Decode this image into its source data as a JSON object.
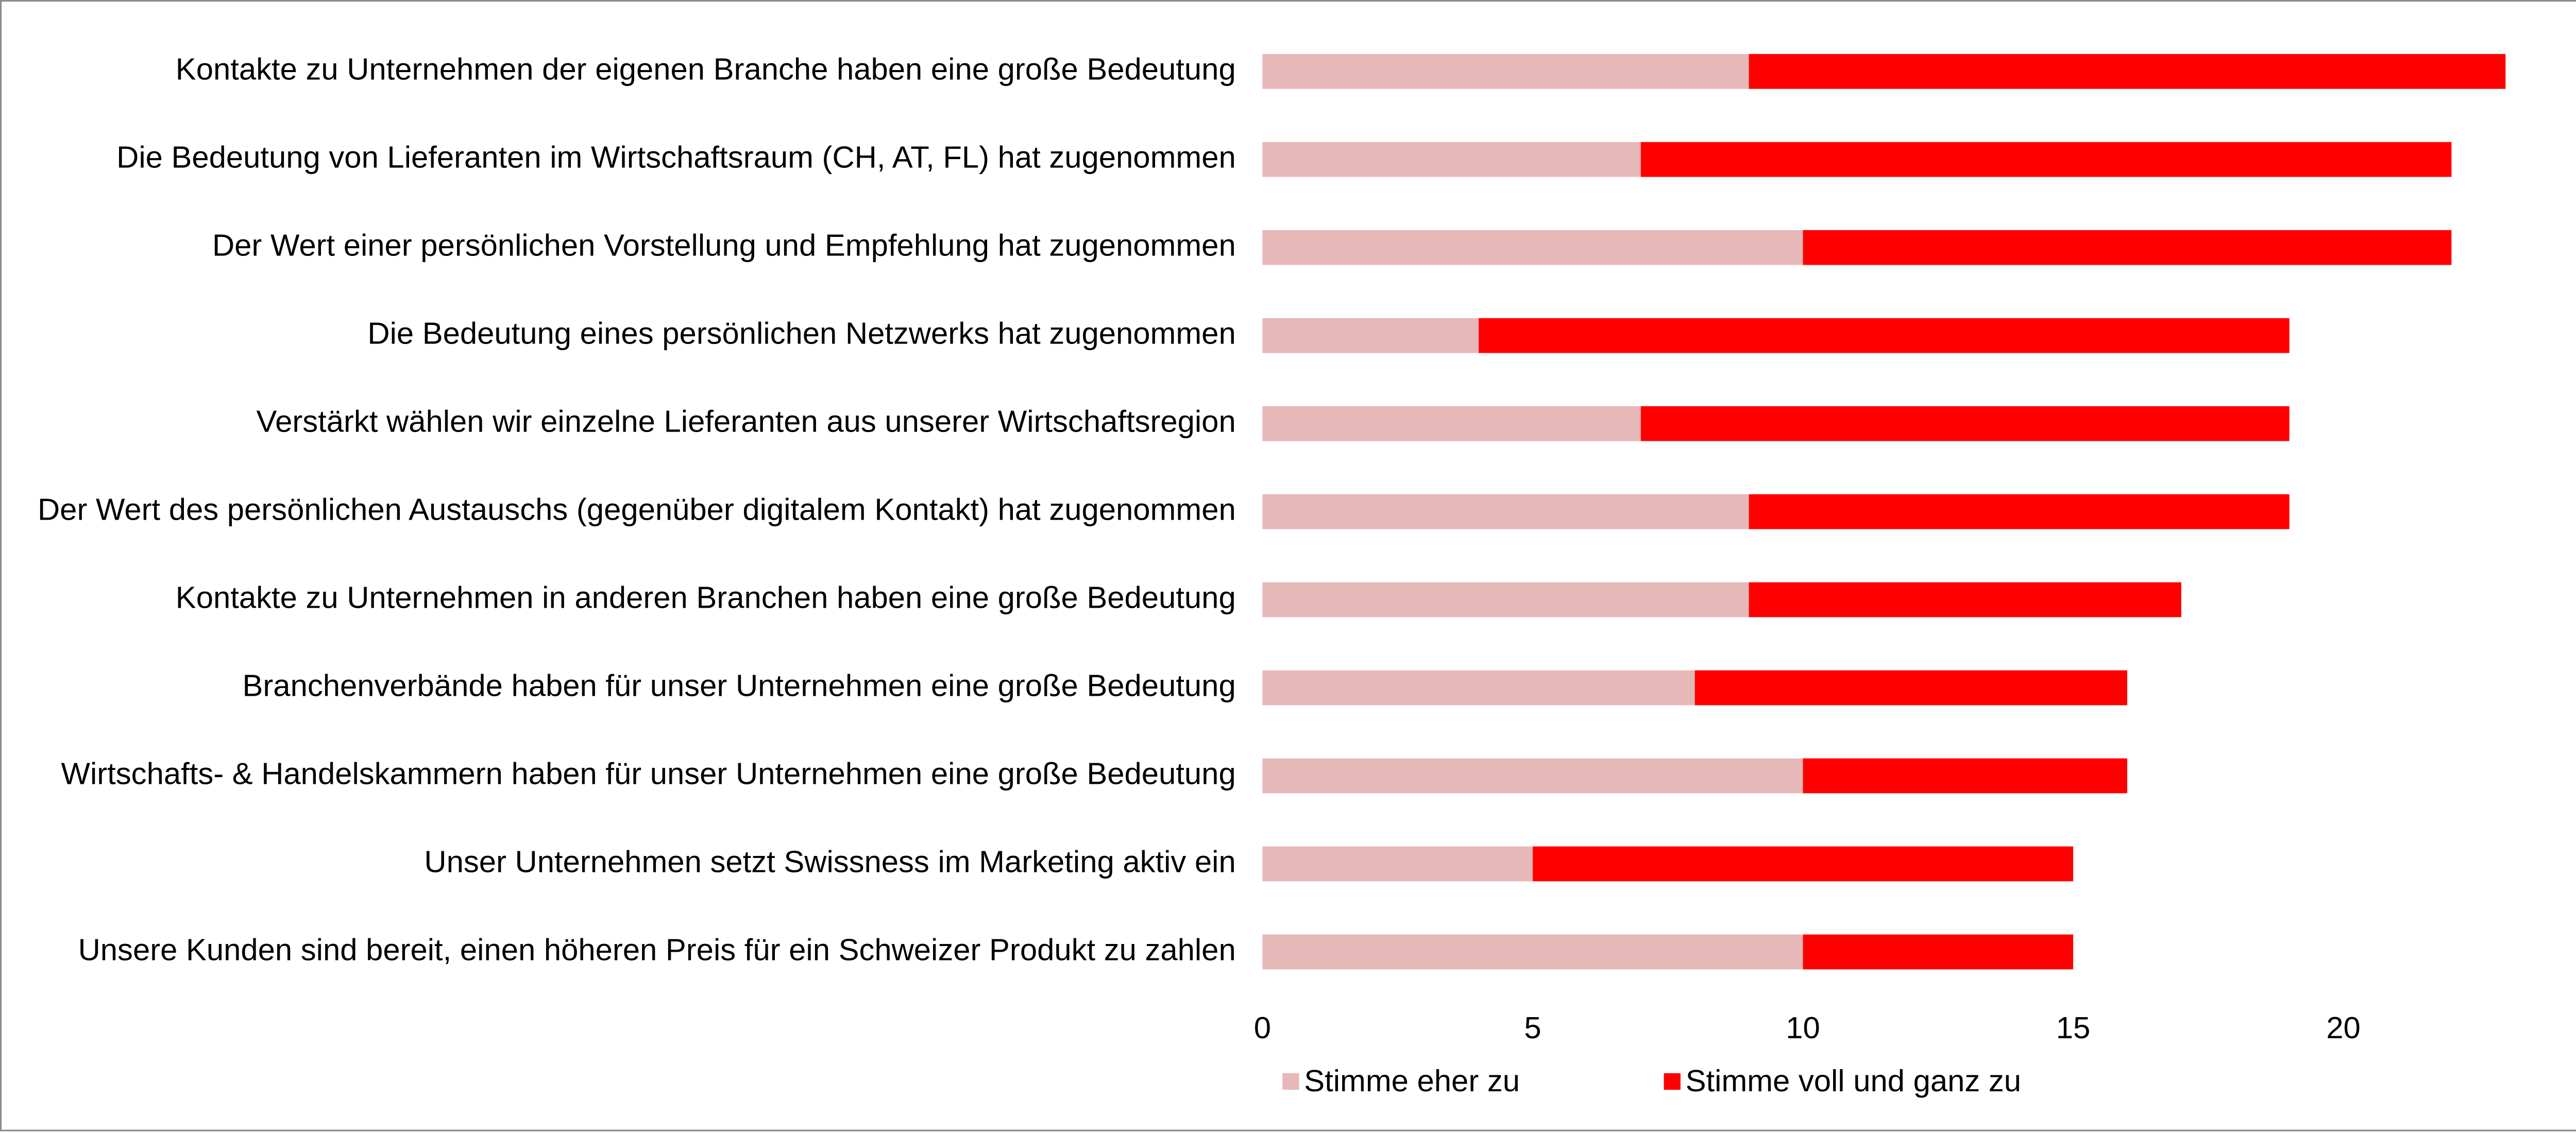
{
  "chart_data": {
    "type": "stacked_barh",
    "categories": [
      "Kontakte zu Unternehmen der eigenen Branche haben eine große Bedeutung",
      "Die Bedeutung von Lieferanten im Wirtschaftsraum (CH, AT, FL) hat zugenommen",
      "Der Wert einer persönlichen Vorstellung und Empfehlung hat zugenommen",
      "Die Bedeutung eines persönlichen Netzwerks hat zugenommen",
      "Verstärkt wählen wir einzelne Lieferanten aus unserer Wirtschaftsregion",
      "Der Wert des persönlichen Austauschs (gegenüber digitalem Kontakt) hat zugenommen",
      "Kontakte zu Unternehmen in anderen Branchen haben eine große Bedeutung",
      "Branchenverbände haben für unser Unternehmen eine große Bedeutung",
      "Wirtschafts- & Handelskammern haben für unser Unternehmen eine große Bedeutung",
      "Unser Unternehmen setzt Swissness im Marketing aktiv ein",
      "Unsere Kunden sind bereit, einen höheren Preis für ein Schweizer Produkt zu zahlen"
    ],
    "series": [
      {
        "name": "Stimme eher zu",
        "color": "#e6b8b7",
        "values": [
          9,
          7,
          10,
          4,
          7,
          9,
          9,
          8,
          10,
          5,
          10
        ]
      },
      {
        "name": "Stimme voll und ganz zu",
        "color": "#ff0000",
        "values": [
          14,
          15,
          12,
          15,
          12,
          10,
          8,
          8,
          6,
          10,
          5
        ]
      }
    ],
    "xlim": [
      0,
      24
    ],
    "xticks": [
      0,
      5,
      10,
      15,
      20
    ],
    "grid": false,
    "legend": "bottom"
  }
}
